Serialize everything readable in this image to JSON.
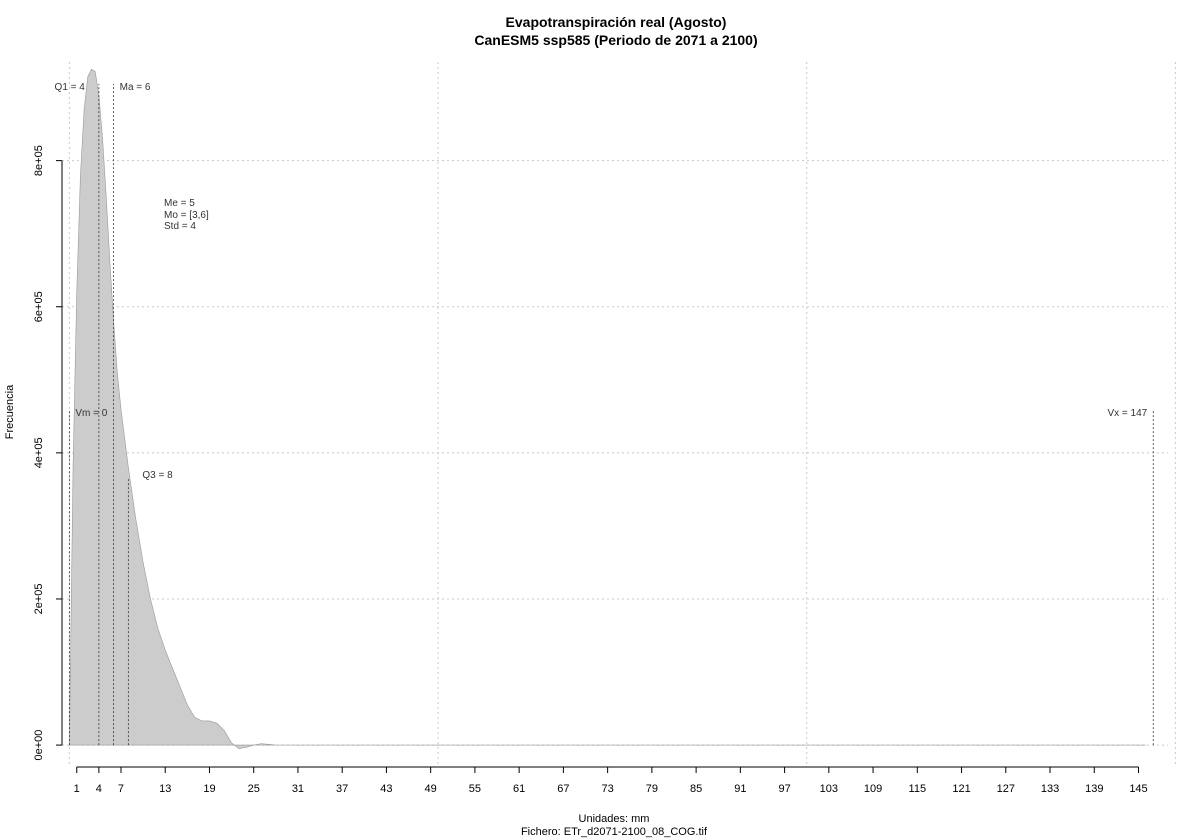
{
  "chart_data": {
    "type": "area",
    "title": "Evapotranspiración real (Agosto)",
    "subtitle": "CanESM5 ssp585 (Periodo de 2071 a 2100)",
    "xlabel": "Unidades: mm",
    "ylabel": "Frecuencia",
    "footer": "Fichero: ETr_d2071-2100_08_COG.tif",
    "xlim": [
      -1,
      149
    ],
    "ylim": [
      -30000,
      935000
    ],
    "x_ticks": [
      1,
      4,
      7,
      13,
      19,
      25,
      31,
      37,
      43,
      49,
      55,
      61,
      67,
      73,
      79,
      85,
      91,
      97,
      103,
      109,
      115,
      121,
      127,
      133,
      139,
      145
    ],
    "x_tick_labels": [
      "1",
      "4",
      "7",
      "13",
      "19",
      "25",
      "31",
      "37",
      "43",
      "49",
      "55",
      "61",
      "67",
      "73",
      "79",
      "85",
      "91",
      "97",
      "103",
      "109",
      "115",
      "121",
      "127",
      "133",
      "139",
      "145"
    ],
    "y_ticks": [
      0,
      200000,
      400000,
      600000,
      800000
    ],
    "y_tick_labels": [
      "0e+00",
      "2e+05",
      "4e+05",
      "6e+05",
      "8e+05"
    ],
    "x_grid": [
      0,
      50,
      100,
      150
    ],
    "y_grid": [
      0,
      200000,
      400000,
      600000,
      800000
    ],
    "grid": true,
    "series": [
      {
        "x": [
          0,
          0.5,
          1,
          1.5,
          2,
          2.5,
          3,
          3.5,
          4,
          4.5,
          5,
          5.5,
          6,
          6.5,
          7,
          7.5,
          8,
          9,
          10,
          11,
          12,
          13,
          14,
          15,
          16,
          17,
          18,
          19,
          20,
          21,
          22,
          23,
          24,
          25,
          26,
          27,
          28,
          30,
          35,
          50,
          100,
          146
        ],
        "y": [
          0,
          380000,
          620000,
          780000,
          870000,
          915000,
          925000,
          922000,
          890000,
          830000,
          750000,
          660000,
          580000,
          510000,
          460000,
          420000,
          380000,
          310000,
          250000,
          200000,
          160000,
          130000,
          105000,
          80000,
          55000,
          38000,
          33000,
          33000,
          30000,
          20000,
          3000,
          -5000,
          -3000,
          0,
          2000,
          1000,
          0,
          0,
          0,
          0,
          0,
          0
        ],
        "color": "#cccccc"
      }
    ],
    "stats": {
      "q1": {
        "x": 4,
        "label": "Q1 = 4"
      },
      "ma": {
        "x": 6,
        "label": "Ma = 6"
      },
      "q3": {
        "x": 8,
        "label": "Q3 = 8"
      },
      "vm": {
        "x": 0,
        "label": "Vm = 0"
      },
      "vx": {
        "x": 147,
        "label": "Vx = 147"
      },
      "me": "Me = 5",
      "mo": "Mo = [3,6]",
      "std": "Std = 4"
    }
  }
}
